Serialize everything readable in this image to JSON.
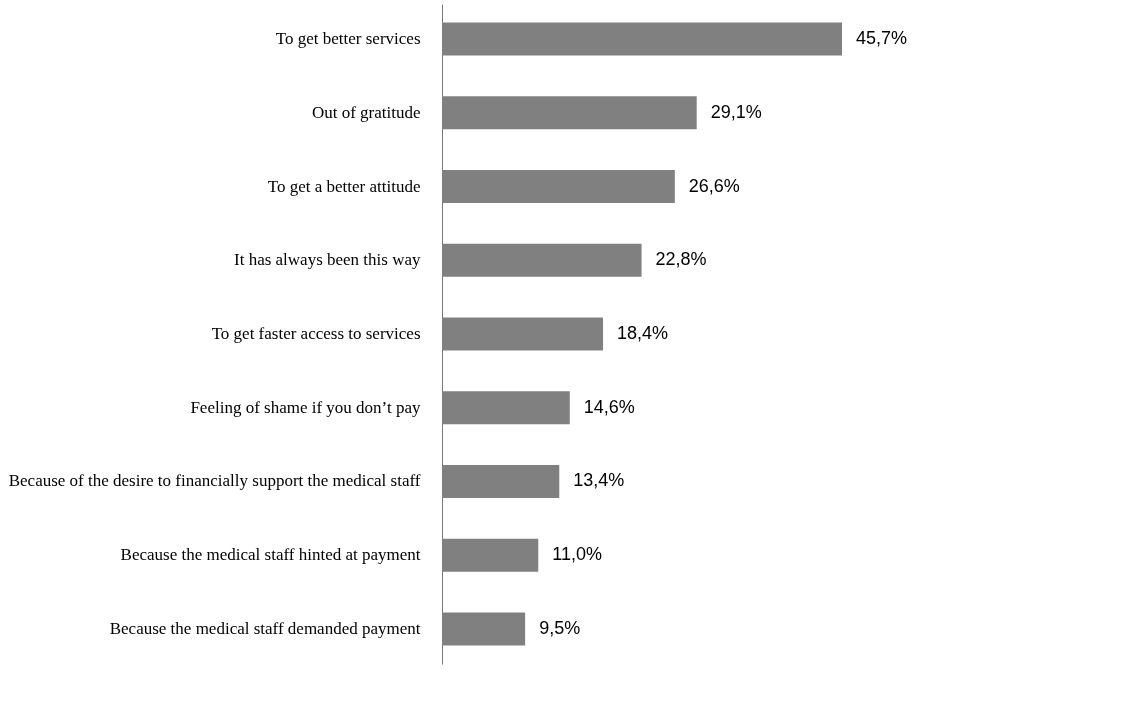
{
  "chart_data": {
    "type": "bar",
    "orientation": "horizontal",
    "categories": [
      "To get better services",
      "Out of gratitude",
      "To get a better attitude",
      "It has always been this way",
      "To get faster access to services",
      "Feeling of shame if you don’t pay",
      "Because of the desire to financially support the medical staff",
      "Because the medical staff hinted at payment",
      "Because the medical staff demanded payment"
    ],
    "values": [
      45.7,
      29.1,
      26.6,
      22.8,
      18.4,
      14.6,
      13.4,
      11.0,
      9.5
    ],
    "value_labels": [
      "45,7%",
      "29,1%",
      "26,6%",
      "22,8%",
      "18,4%",
      "14,6%",
      "13,4%",
      "11,0%",
      "9,5%"
    ],
    "color": "#808080",
    "grid": false
  }
}
